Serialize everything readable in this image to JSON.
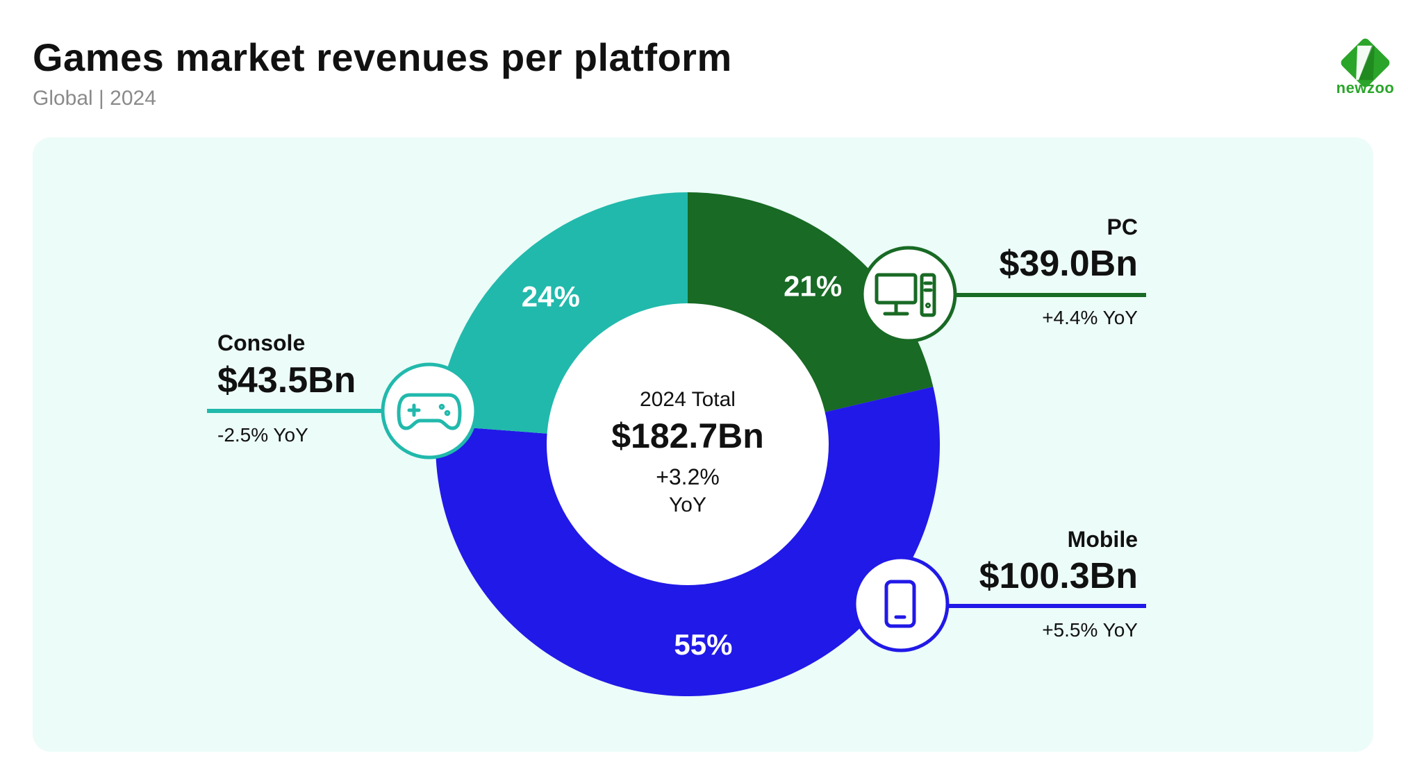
{
  "header": {
    "title": "Games market revenues per platform",
    "subtitle": "Global | 2024"
  },
  "logo": {
    "text": "newzoo",
    "color": "#2aa52a",
    "icon": "newzoo-logo-icon"
  },
  "colors": {
    "panel_bg": "#ecfcf8",
    "console": "#21b9ac",
    "pc": "#186a24",
    "mobile": "#2119e7"
  },
  "chart_data": {
    "type": "pie",
    "variant": "donut",
    "center": {
      "label": "2024 Total",
      "value": "$182.7Bn",
      "change": "+3.2%",
      "change_unit": "YoY"
    },
    "slices": [
      {
        "label": "PC",
        "value": 39.0,
        "percent_label": "21%",
        "value_label": "$39.0Bn",
        "change": "+4.4% YoY",
        "color": "#186a24",
        "icon": "desktop-computer-icon",
        "side": "right"
      },
      {
        "label": "Mobile",
        "value": 100.3,
        "percent_label": "55%",
        "value_label": "$100.3Bn",
        "change": "+5.5% YoY",
        "color": "#2119e7",
        "icon": "smartphone-icon",
        "side": "right"
      },
      {
        "label": "Console",
        "value": 43.5,
        "percent_label": "24%",
        "value_label": "$43.5Bn",
        "change": "-2.5% YoY",
        "color": "#21b9ac",
        "icon": "gamepad-icon",
        "side": "left"
      }
    ]
  }
}
